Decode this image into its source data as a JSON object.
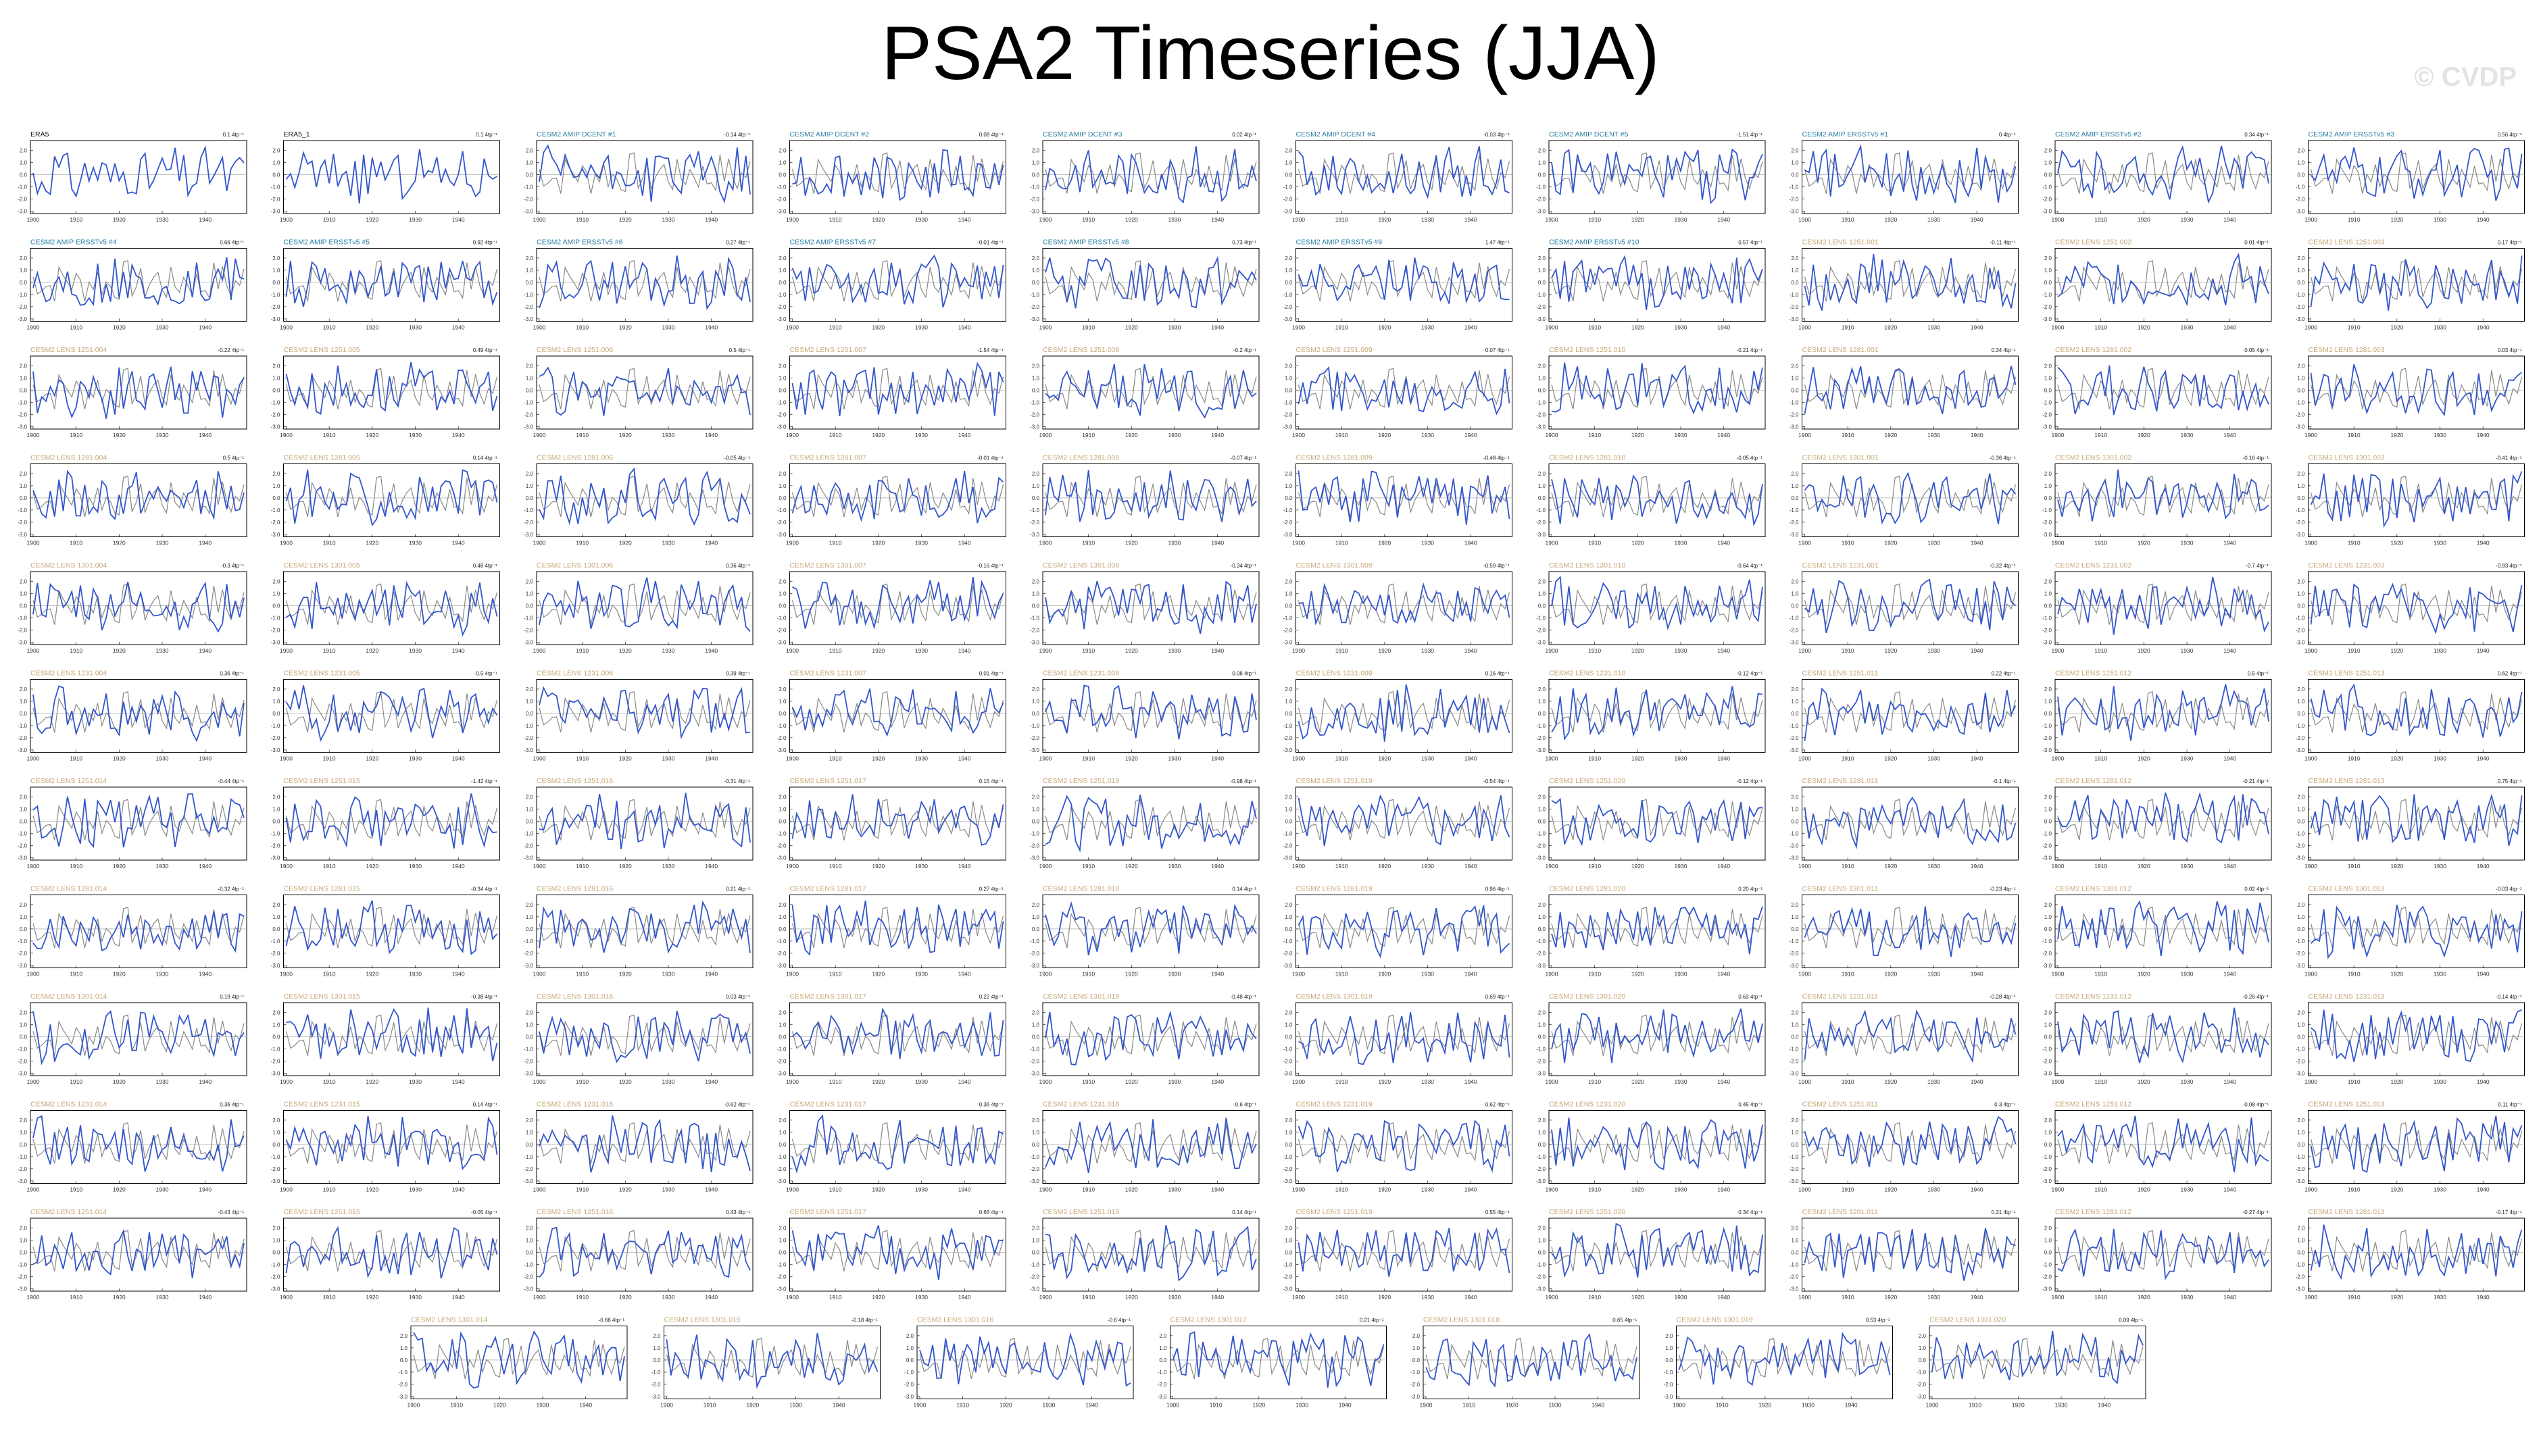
{
  "title": "PSA2 Timeseries (JJA)",
  "watermark": "© CVDP",
  "colors": {
    "obs_title": "#111111",
    "amip_title": "#2a7fa8",
    "lens_title": "#c8a878",
    "model_line": "#3355cc",
    "obs_line": "#888888",
    "frame": "#000000"
  },
  "axes": {
    "x_ticks": [
      "1900",
      "1910",
      "1920",
      "1930",
      "1940"
    ],
    "y_ticks": [
      "2.0",
      "1.0",
      "0.0",
      "-1.0",
      "-2.0",
      "-3.0"
    ],
    "xlim": [
      1900,
      1949
    ],
    "ylim": [
      -3.2,
      2.8
    ]
  },
  "chart_data": {
    "type": "line",
    "title": "PSA2 Timeseries (JJA)",
    "xlabel": "",
    "ylabel": "",
    "x_start": 1900,
    "x_end": 1949,
    "panels": [
      {
        "title": "ERA5",
        "trend": "0.1 4tp⁻¹",
        "kind": "obs"
      },
      {
        "title": "ERA5_1",
        "trend": "0.1 4tp⁻¹",
        "kind": "obs"
      },
      {
        "title": "CESM2 AMIP DCENT #1",
        "trend": "-0.14 4tp⁻¹",
        "kind": "amip"
      },
      {
        "title": "CESM2 AMIP DCENT #2",
        "trend": "0.08 4tp⁻¹",
        "kind": "amip"
      },
      {
        "title": "CESM2 AMIP DCENT #3",
        "trend": "0.02 4tp⁻¹",
        "kind": "amip"
      },
      {
        "title": "CESM2 AMIP DCENT #4",
        "trend": "-0.03 4tp⁻¹",
        "kind": "amip"
      },
      {
        "title": "CESM2 AMIP DCENT #5",
        "trend": "-1.51 4tp⁻¹",
        "kind": "amip"
      },
      {
        "title": "CESM2 AMIP ERSSTv5 #1",
        "trend": "0 4tp⁻¹",
        "kind": "amip"
      },
      {
        "title": "CESM2 AMIP ERSSTv5 #2",
        "trend": "0.34 4tp⁻¹",
        "kind": "amip"
      },
      {
        "title": "CESM2 AMIP ERSSTv5 #3",
        "trend": "0.56 4tp⁻¹",
        "kind": "amip"
      },
      {
        "title": "CESM2 AMIP ERSSTv5 #4",
        "trend": "0.66 4tp⁻¹",
        "kind": "amip"
      },
      {
        "title": "CESM2 AMIP ERSSTv5 #5",
        "trend": "0.92 4tp⁻¹",
        "kind": "amip"
      },
      {
        "title": "CESM2 AMIP ERSSTv5 #6",
        "trend": "0.27 4tp⁻¹",
        "kind": "amip"
      },
      {
        "title": "CESM2 AMIP ERSSTv5 #7",
        "trend": "-0.01 4tp⁻¹",
        "kind": "amip"
      },
      {
        "title": "CESM2 AMIP ERSSTv5 #8",
        "trend": "0.73 4tp⁻¹",
        "kind": "amip"
      },
      {
        "title": "CESM2 AMIP ERSSTv5 #9",
        "trend": "1.47 4tp⁻¹",
        "kind": "amip"
      },
      {
        "title": "CESM2 AMIP ERSSTv5 #10",
        "trend": "0.57 4tp⁻¹",
        "kind": "amip"
      },
      {
        "title": "CESM2 LENS 1251.001",
        "trend": "-0.11 4tp⁻¹",
        "kind": "lens"
      },
      {
        "title": "CESM2 LENS 1251.002",
        "trend": "0.01 4tp⁻¹",
        "kind": "lens"
      },
      {
        "title": "CESM2 LENS 1251.003",
        "trend": "0.17 4tp⁻¹",
        "kind": "lens"
      },
      {
        "title": "CESM2 LENS 1251.004",
        "trend": "-0.22 4tp⁻¹",
        "kind": "lens"
      },
      {
        "title": "CESM2 LENS 1251.005",
        "trend": "0.49 4tp⁻¹",
        "kind": "lens"
      },
      {
        "title": "CESM2 LENS 1251.006",
        "trend": "0.5 4tp⁻¹",
        "kind": "lens"
      },
      {
        "title": "CESM2 LENS 1251.007",
        "trend": "-1.54 4tp⁻¹",
        "kind": "lens"
      },
      {
        "title": "CESM2 LENS 1251.008",
        "trend": "-0.2 4tp⁻¹",
        "kind": "lens"
      },
      {
        "title": "CESM2 LENS 1251.009",
        "trend": "0.07 4tp⁻¹",
        "kind": "lens"
      },
      {
        "title": "CESM2 LENS 1251.010",
        "trend": "-0.21 4tp⁻¹",
        "kind": "lens"
      },
      {
        "title": "CESM2 LENS 1281.001",
        "trend": "0.34 4tp⁻¹",
        "kind": "lens"
      },
      {
        "title": "CESM2 LENS 1281.002",
        "trend": "0.05 4tp⁻¹",
        "kind": "lens"
      },
      {
        "title": "CESM2 LENS 1281.003",
        "trend": "0.03 4tp⁻¹",
        "kind": "lens"
      },
      {
        "title": "CESM2 LENS 1281.004",
        "trend": "0.5 4tp⁻¹",
        "kind": "lens"
      },
      {
        "title": "CESM2 LENS 1281.005",
        "trend": "0.14 4tp⁻¹",
        "kind": "lens"
      },
      {
        "title": "CESM2 LENS 1281.006",
        "trend": "-0.05 4tp⁻¹",
        "kind": "lens"
      },
      {
        "title": "CESM2 LENS 1281.007",
        "trend": "-0.01 4tp⁻¹",
        "kind": "lens"
      },
      {
        "title": "CESM2 LENS 1281.008",
        "trend": "-0.07 4tp⁻¹",
        "kind": "lens"
      },
      {
        "title": "CESM2 LENS 1281.009",
        "trend": "-0.48 4tp⁻¹",
        "kind": "lens"
      },
      {
        "title": "CESM2 LENS 1281.010",
        "trend": "-0.05 4tp⁻¹",
        "kind": "lens"
      },
      {
        "title": "CESM2 LENS 1301.001",
        "trend": "-0.36 4tp⁻¹",
        "kind": "lens"
      },
      {
        "title": "CESM2 LENS 1301.002",
        "trend": "-0.16 4tp⁻¹",
        "kind": "lens"
      },
      {
        "title": "CESM2 LENS 1301.003",
        "trend": "-0.41 4tp⁻¹",
        "kind": "lens"
      },
      {
        "title": "CESM2 LENS 1301.004",
        "trend": "-0.3 4tp⁻¹",
        "kind": "lens"
      },
      {
        "title": "CESM2 LENS 1301.005",
        "trend": "0.48 4tp⁻¹",
        "kind": "lens"
      },
      {
        "title": "CESM2 LENS 1301.006",
        "trend": "0.36 4tp⁻¹",
        "kind": "lens"
      },
      {
        "title": "CESM2 LENS 1301.007",
        "trend": "-0.16 4tp⁻¹",
        "kind": "lens"
      },
      {
        "title": "CESM2 LENS 1301.008",
        "trend": "-0.34 4tp⁻¹",
        "kind": "lens"
      },
      {
        "title": "CESM2 LENS 1301.009",
        "trend": "-0.59 4tp⁻¹",
        "kind": "lens"
      },
      {
        "title": "CESM2 LENS 1301.010",
        "trend": "-0.64 4tp⁻¹",
        "kind": "lens"
      },
      {
        "title": "CESM2 LENS 1231.001",
        "trend": "-0.32 4tp⁻¹",
        "kind": "lens"
      },
      {
        "title": "CESM2 LENS 1231.002",
        "trend": "-0.7 4tp⁻¹",
        "kind": "lens"
      },
      {
        "title": "CESM2 LENS 1231.003",
        "trend": "-0.93 4tp⁻¹",
        "kind": "lens"
      },
      {
        "title": "CESM2 LENS 1231.004",
        "trend": "0.36 4tp⁻¹",
        "kind": "lens"
      },
      {
        "title": "CESM2 LENS 1231.005",
        "trend": "-0.5 4tp⁻¹",
        "kind": "lens"
      },
      {
        "title": "CESM2 LENS 1231.006",
        "trend": "0.39 4tp⁻¹",
        "kind": "lens"
      },
      {
        "title": "CESM2 LENS 1231.007",
        "trend": "0.01 4tp⁻¹",
        "kind": "lens"
      },
      {
        "title": "CESM2 LENS 1231.008",
        "trend": "0.08 4tp⁻¹",
        "kind": "lens"
      },
      {
        "title": "CESM2 LENS 1231.009",
        "trend": "0.16 4tp⁻¹",
        "kind": "lens"
      },
      {
        "title": "CESM2 LENS 1231.010",
        "trend": "-0.12 4tp⁻¹",
        "kind": "lens"
      },
      {
        "title": "CESM2 LENS 1251.011",
        "trend": "0.22 4tp⁻¹",
        "kind": "lens"
      },
      {
        "title": "CESM2 LENS 1251.012",
        "trend": "0.5 4tp⁻¹",
        "kind": "lens"
      },
      {
        "title": "CESM2 LENS 1251.013",
        "trend": "0.62 4tp⁻¹",
        "kind": "lens"
      },
      {
        "title": "CESM2 LENS 1251.014",
        "trend": "-0.44 4tp⁻¹",
        "kind": "lens"
      },
      {
        "title": "CESM2 LENS 1251.015",
        "trend": "-1.42 4tp⁻¹",
        "kind": "lens"
      },
      {
        "title": "CESM2 LENS 1251.016",
        "trend": "-0.31 4tp⁻¹",
        "kind": "lens"
      },
      {
        "title": "CESM2 LENS 1251.017",
        "trend": "0.15 4tp⁻¹",
        "kind": "lens"
      },
      {
        "title": "CESM2 LENS 1251.018",
        "trend": "-0.98 4tp⁻¹",
        "kind": "lens"
      },
      {
        "title": "CESM2 LENS 1251.019",
        "trend": "-0.54 4tp⁻¹",
        "kind": "lens"
      },
      {
        "title": "CESM2 LENS 1251.020",
        "trend": "-0.12 4tp⁻¹",
        "kind": "lens"
      },
      {
        "title": "CESM2 LENS 1281.011",
        "trend": "-0.1 4tp⁻¹",
        "kind": "lens"
      },
      {
        "title": "CESM2 LENS 1281.012",
        "trend": "-0.21 4tp⁻¹",
        "kind": "lens"
      },
      {
        "title": "CESM2 LENS 1281.013",
        "trend": "0.75 4tp⁻¹",
        "kind": "lens"
      },
      {
        "title": "CESM2 LENS 1281.014",
        "trend": "-0.32 4tp⁻¹",
        "kind": "lens"
      },
      {
        "title": "CESM2 LENS 1281.015",
        "trend": "-0.34 4tp⁻¹",
        "kind": "lens"
      },
      {
        "title": "CESM2 LENS 1281.016",
        "trend": "0.21 4tp⁻¹",
        "kind": "lens"
      },
      {
        "title": "CESM2 LENS 1281.017",
        "trend": "0.27 4tp⁻¹",
        "kind": "lens"
      },
      {
        "title": "CESM2 LENS 1281.018",
        "trend": "0.14 4tp⁻¹",
        "kind": "lens"
      },
      {
        "title": "CESM2 LENS 1281.019",
        "trend": "0.96 4tp⁻¹",
        "kind": "lens"
      },
      {
        "title": "CESM2 LENS 1281.020",
        "trend": "0.20 4tp⁻¹",
        "kind": "lens"
      },
      {
        "title": "CESM2 LENS 1301.011",
        "trend": "-0.23 4tp⁻¹",
        "kind": "lens"
      },
      {
        "title": "CESM2 LENS 1301.012",
        "trend": "0.02 4tp⁻¹",
        "kind": "lens"
      },
      {
        "title": "CESM2 LENS 1301.013",
        "trend": "-0.03 4tp⁻¹",
        "kind": "lens"
      },
      {
        "title": "CESM2 LENS 1301.014",
        "trend": "0.19 4tp⁻¹",
        "kind": "lens"
      },
      {
        "title": "CESM2 LENS 1301.015",
        "trend": "-0.38 4tp⁻¹",
        "kind": "lens"
      },
      {
        "title": "CESM2 LENS 1301.016",
        "trend": "0.03 4tp⁻¹",
        "kind": "lens"
      },
      {
        "title": "CESM2 LENS 1301.017",
        "trend": "0.22 4tp⁻¹",
        "kind": "lens"
      },
      {
        "title": "CESM2 LENS 1301.018",
        "trend": "-0.48 4tp⁻¹",
        "kind": "lens"
      },
      {
        "title": "CESM2 LENS 1301.019",
        "trend": "0.69 4tp⁻¹",
        "kind": "lens"
      },
      {
        "title": "CESM2 LENS 1301.020",
        "trend": "0.63 4tp⁻¹",
        "kind": "lens"
      },
      {
        "title": "CESM2 LENS 1231.011",
        "trend": "-0.28 4tp⁻¹",
        "kind": "lens"
      },
      {
        "title": "CESM2 LENS 1231.012",
        "trend": "-0.28 4tp⁻¹",
        "kind": "lens"
      },
      {
        "title": "CESM2 LENS 1231.013",
        "trend": "-0.14 4tp⁻¹",
        "kind": "lens"
      },
      {
        "title": "CESM2 LENS 1231.014",
        "trend": "0.36 4tp⁻¹",
        "kind": "lens"
      },
      {
        "title": "CESM2 LENS 1231.015",
        "trend": "0.14 4tp⁻¹",
        "kind": "lens"
      },
      {
        "title": "CESM2 LENS 1231.016",
        "trend": "-0.62 4tp⁻¹",
        "kind": "lens"
      },
      {
        "title": "CESM2 LENS 1231.017",
        "trend": "0.36 4tp⁻¹",
        "kind": "lens"
      },
      {
        "title": "CESM2 LENS 1231.018",
        "trend": "-0.6 4tp⁻¹",
        "kind": "lens"
      },
      {
        "title": "CESM2 LENS 1231.019",
        "trend": "0.62 4tp⁻¹",
        "kind": "lens"
      },
      {
        "title": "CESM2 LENS 1231.020",
        "trend": "0.45 4tp⁻¹",
        "kind": "lens"
      },
      {
        "title": "CESM2 LENS 1251.011",
        "trend": "0.3 4tp⁻¹",
        "kind": "lens"
      },
      {
        "title": "CESM2 LENS 1251.012",
        "trend": "-0.08 4tp⁻¹",
        "kind": "lens"
      },
      {
        "title": "CESM2 LENS 1251.013",
        "trend": "0.11 4tp⁻¹",
        "kind": "lens"
      },
      {
        "title": "CESM2 LENS 1251.014",
        "trend": "-0.43 4tp⁻¹",
        "kind": "lens"
      },
      {
        "title": "CESM2 LENS 1251.015",
        "trend": "-0.05 4tp⁻¹",
        "kind": "lens"
      },
      {
        "title": "CESM2 LENS 1251.016",
        "trend": "0.43 4tp⁻¹",
        "kind": "lens"
      },
      {
        "title": "CESM2 LENS 1251.017",
        "trend": "0.66 4tp⁻¹",
        "kind": "lens"
      },
      {
        "title": "CESM2 LENS 1251.018",
        "trend": "0.14 4tp⁻¹",
        "kind": "lens"
      },
      {
        "title": "CESM2 LENS 1251.019",
        "trend": "0.55 4tp⁻¹",
        "kind": "lens"
      },
      {
        "title": "CESM2 LENS 1251.020",
        "trend": "0.34 4tp⁻¹",
        "kind": "lens"
      },
      {
        "title": "CESM2 LENS 1281.011",
        "trend": "0.21 4tp⁻¹",
        "kind": "lens"
      },
      {
        "title": "CESM2 LENS 1281.012",
        "trend": "-0.27 4tp⁻¹",
        "kind": "lens"
      },
      {
        "title": "CESM2 LENS 1281.013",
        "trend": "-0.17 4tp⁻¹",
        "kind": "lens"
      },
      {
        "title": "CESM2 LENS 1301.014",
        "trend": "-0.66 4tp⁻¹",
        "kind": "lens"
      },
      {
        "title": "CESM2 LENS 1301.015",
        "trend": "-0.18 4tp⁻¹",
        "kind": "lens"
      },
      {
        "title": "CESM2 LENS 1301.016",
        "trend": "-0.6 4tp⁻¹",
        "kind": "lens"
      },
      {
        "title": "CESM2 LENS 1301.017",
        "trend": "0.21 4tp⁻¹",
        "kind": "lens"
      },
      {
        "title": "CESM2 LENS 1301.018",
        "trend": "0.65 4tp⁻¹",
        "kind": "lens"
      },
      {
        "title": "CESM2 LENS 1301.019",
        "trend": "0.53 4tp⁻¹",
        "kind": "lens"
      },
      {
        "title": "CESM2 LENS 1301.020",
        "trend": "0.09 4tp⁻¹",
        "kind": "lens"
      }
    ]
  }
}
